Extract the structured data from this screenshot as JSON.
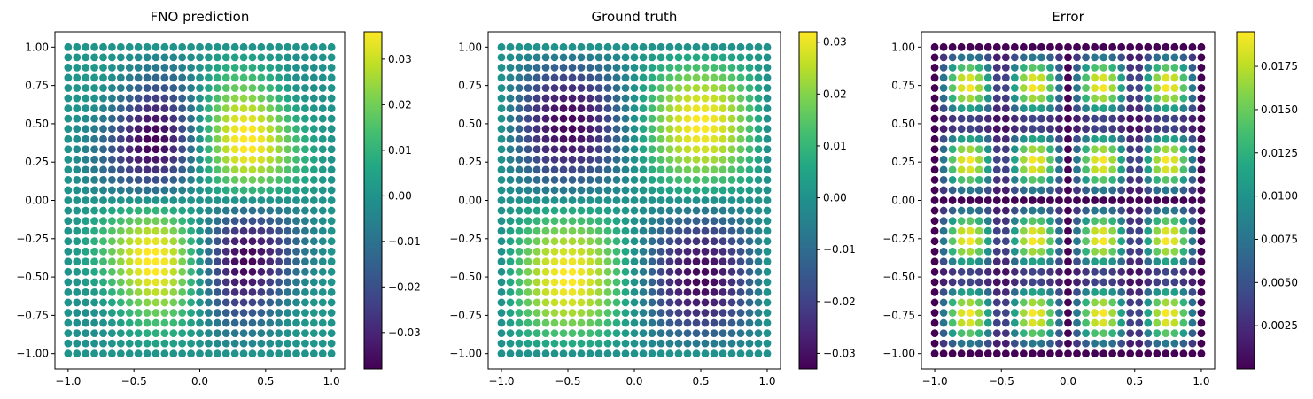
{
  "chart_data": [
    {
      "type": "scatter",
      "title": "FNO prediction",
      "grid": {
        "n": 31,
        "xrange": [
          -1.0,
          1.0
        ],
        "yrange": [
          -1.0,
          1.0
        ]
      },
      "xlim": [
        -1.1,
        1.1
      ],
      "ylim": [
        -1.1,
        1.1
      ],
      "xticks": [
        -1.0,
        -0.5,
        0.0,
        0.5,
        1.0
      ],
      "xtick_labels": [
        "−1.0",
        "−0.5",
        "0.0",
        "0.5",
        "1.0"
      ],
      "yticks": [
        1.0,
        0.75,
        0.5,
        0.25,
        0.0,
        -0.25,
        -0.5,
        -0.75,
        -1.0
      ],
      "ytick_labels": [
        "1.00",
        "0.75",
        "0.50",
        "0.25",
        "0.00",
        "−0.25",
        "−0.50",
        "−0.75",
        "−1.00"
      ],
      "color_field": "u(x,y) = 0.0355·sin(πx)·sin(πy) with secondary lobes",
      "colorbar": {
        "colormap": "viridis",
        "range": [
          -0.038,
          0.036
        ],
        "ticks": [
          0.03,
          0.02,
          0.01,
          0.0,
          -0.01,
          -0.02,
          -0.03
        ],
        "tick_labels": [
          "0.03",
          "0.02",
          "0.01",
          "0.00",
          "−0.01",
          "−0.02",
          "−0.03"
        ]
      }
    },
    {
      "type": "scatter",
      "title": "Ground truth",
      "grid": {
        "n": 31,
        "xrange": [
          -1.0,
          1.0
        ],
        "yrange": [
          -1.0,
          1.0
        ]
      },
      "xlim": [
        -1.1,
        1.1
      ],
      "ylim": [
        -1.1,
        1.1
      ],
      "xticks": [
        -1.0,
        -0.5,
        0.0,
        0.5,
        1.0
      ],
      "xtick_labels": [
        "−1.0",
        "−0.5",
        "0.0",
        "0.5",
        "1.0"
      ],
      "yticks": [
        1.0,
        0.75,
        0.5,
        0.25,
        0.0,
        -0.25,
        -0.5,
        -0.75,
        -1.0
      ],
      "ytick_labels": [
        "1.00",
        "0.75",
        "0.50",
        "0.25",
        "0.00",
        "−0.25",
        "−0.50",
        "−0.75",
        "−1.00"
      ],
      "color_field": "u(x,y) = 0.032·sin(πx)·sin(πy)",
      "colorbar": {
        "colormap": "viridis",
        "range": [
          -0.033,
          0.032
        ],
        "ticks": [
          0.03,
          0.02,
          0.01,
          0.0,
          -0.01,
          -0.02,
          -0.03
        ],
        "tick_labels": [
          "0.03",
          "0.02",
          "0.01",
          "0.00",
          "−0.01",
          "−0.02",
          "−0.03"
        ]
      }
    },
    {
      "type": "scatter",
      "title": "Error",
      "grid": {
        "n": 31,
        "xrange": [
          -1.0,
          1.0
        ],
        "yrange": [
          -1.0,
          1.0
        ]
      },
      "xlim": [
        -1.1,
        1.1
      ],
      "ylim": [
        -1.1,
        1.1
      ],
      "xticks": [
        -1.0,
        -0.5,
        0.0,
        0.5,
        1.0
      ],
      "xtick_labels": [
        "−1.0",
        "−0.5",
        "0.0",
        "0.5",
        "1.0"
      ],
      "yticks": [
        1.0,
        0.75,
        0.5,
        0.25,
        0.0,
        -0.25,
        -0.5,
        -0.75,
        -1.0
      ],
      "ytick_labels": [
        "1.00",
        "0.75",
        "0.50",
        "0.25",
        "0.00",
        "−0.25",
        "−0.50",
        "−0.75",
        "−1.00"
      ],
      "color_field": "e(x,y) = 0.0195·|sin(2πx)·sin(2πy)|",
      "colorbar": {
        "colormap": "viridis",
        "range": [
          0.0,
          0.0195
        ],
        "ticks": [
          0.0175,
          0.015,
          0.0125,
          0.01,
          0.0075,
          0.005,
          0.0025
        ],
        "tick_labels": [
          "0.0175",
          "0.0150",
          "0.0125",
          "0.0100",
          "0.0075",
          "0.0050",
          "0.0025"
        ]
      }
    }
  ]
}
